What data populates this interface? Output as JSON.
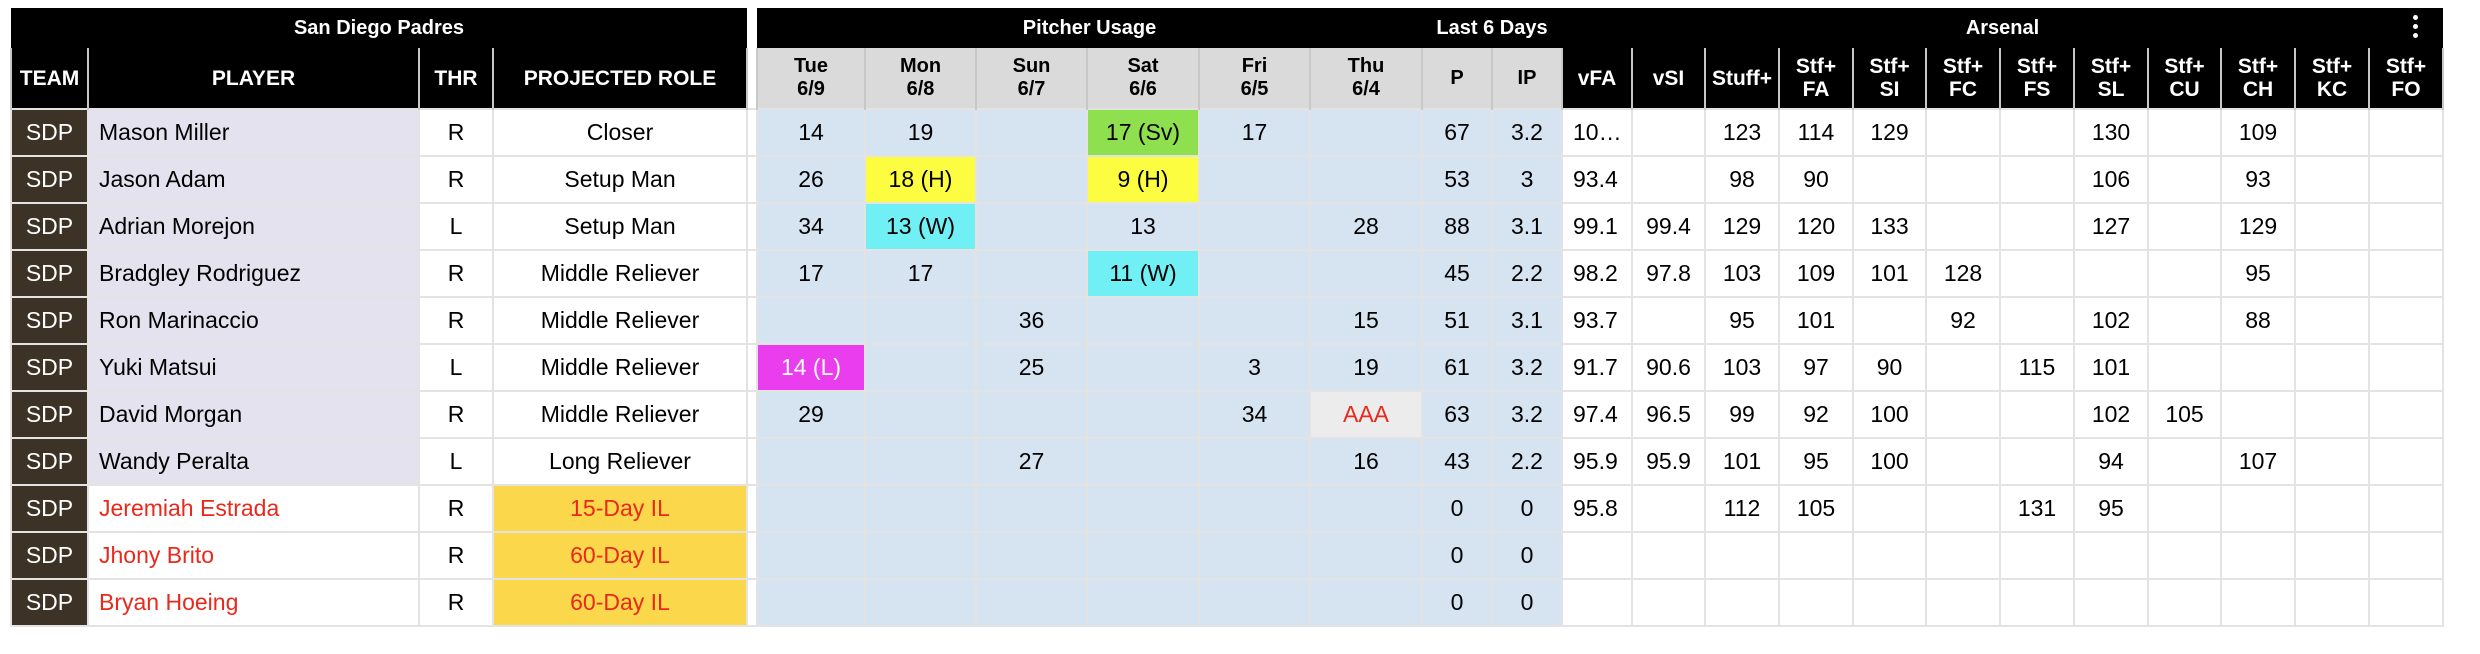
{
  "groups": {
    "team": "San Diego Padres",
    "usage": "Pitcher Usage",
    "last6": "Last 6 Days",
    "arsenal": "Arsenal"
  },
  "headers": {
    "team": "TEAM",
    "player": "PLAYER",
    "thr": "THR",
    "role": "PROJECTED ROLE",
    "days": [
      {
        "day": "Tue",
        "date": "6/9"
      },
      {
        "day": "Mon",
        "date": "6/8"
      },
      {
        "day": "Sun",
        "date": "6/7"
      },
      {
        "day": "Sat",
        "date": "6/6"
      },
      {
        "day": "Fri",
        "date": "6/5"
      },
      {
        "day": "Thu",
        "date": "6/4"
      }
    ],
    "last6": [
      "P",
      "IP"
    ],
    "arsenal": [
      [
        "vFA"
      ],
      [
        "vSI"
      ],
      [
        "Stuff+"
      ],
      [
        "Stf+",
        "FA"
      ],
      [
        "Stf+",
        "SI"
      ],
      [
        "Stf+",
        "FC"
      ],
      [
        "Stf+",
        "FS"
      ],
      [
        "Stf+",
        "SL"
      ],
      [
        "Stf+",
        "CU"
      ],
      [
        "Stf+",
        "CH"
      ],
      [
        "Stf+",
        "KC"
      ],
      [
        "Stf+",
        "FO"
      ]
    ]
  },
  "legend_colors": {
    "save": "#8ee04e",
    "hold": "#fcfc41",
    "win": "#70f0f4",
    "loss": "#ea3ded",
    "injured_list": "#fbd84b",
    "team_badge": "#3c3226"
  },
  "rows": [
    {
      "team": "SDP",
      "player": "Mason Miller",
      "thr": "R",
      "role": "Closer",
      "injured": false,
      "usage": [
        {
          "text": "14",
          "event": ""
        },
        {
          "text": "19",
          "event": ""
        },
        {
          "text": "",
          "event": ""
        },
        {
          "text": "17 (Sv)",
          "event": "sv"
        },
        {
          "text": "17",
          "event": ""
        },
        {
          "text": "",
          "event": ""
        }
      ],
      "p": "67",
      "ip": "3.2",
      "arsenal": [
        "10…",
        "",
        "123",
        "114",
        "129",
        "",
        "",
        "130",
        "",
        "109",
        "",
        ""
      ]
    },
    {
      "team": "SDP",
      "player": "Jason Adam",
      "thr": "R",
      "role": "Setup Man",
      "injured": false,
      "usage": [
        {
          "text": "26",
          "event": ""
        },
        {
          "text": "18 (H)",
          "event": "h"
        },
        {
          "text": "",
          "event": ""
        },
        {
          "text": "9 (H)",
          "event": "h"
        },
        {
          "text": "",
          "event": ""
        },
        {
          "text": "",
          "event": ""
        }
      ],
      "p": "53",
      "ip": "3",
      "arsenal": [
        "93.4",
        "",
        "98",
        "90",
        "",
        "",
        "",
        "106",
        "",
        "93",
        "",
        ""
      ]
    },
    {
      "team": "SDP",
      "player": "Adrian Morejon",
      "thr": "L",
      "role": "Setup Man",
      "injured": false,
      "usage": [
        {
          "text": "34",
          "event": ""
        },
        {
          "text": "13 (W)",
          "event": "w"
        },
        {
          "text": "",
          "event": ""
        },
        {
          "text": "13",
          "event": ""
        },
        {
          "text": "",
          "event": ""
        },
        {
          "text": "28",
          "event": ""
        }
      ],
      "p": "88",
      "ip": "3.1",
      "arsenal": [
        "99.1",
        "99.4",
        "129",
        "120",
        "133",
        "",
        "",
        "127",
        "",
        "129",
        "",
        ""
      ]
    },
    {
      "team": "SDP",
      "player": "Bradgley Rodriguez",
      "thr": "R",
      "role": "Middle Reliever",
      "injured": false,
      "usage": [
        {
          "text": "17",
          "event": ""
        },
        {
          "text": "17",
          "event": ""
        },
        {
          "text": "",
          "event": ""
        },
        {
          "text": "11 (W)",
          "event": "w"
        },
        {
          "text": "",
          "event": ""
        },
        {
          "text": "",
          "event": ""
        }
      ],
      "p": "45",
      "ip": "2.2",
      "arsenal": [
        "98.2",
        "97.8",
        "103",
        "109",
        "101",
        "128",
        "",
        "",
        "",
        "95",
        "",
        ""
      ]
    },
    {
      "team": "SDP",
      "player": "Ron Marinaccio",
      "thr": "R",
      "role": "Middle Reliever",
      "injured": false,
      "usage": [
        {
          "text": "",
          "event": ""
        },
        {
          "text": "",
          "event": ""
        },
        {
          "text": "36",
          "event": ""
        },
        {
          "text": "",
          "event": ""
        },
        {
          "text": "",
          "event": ""
        },
        {
          "text": "15",
          "event": ""
        }
      ],
      "p": "51",
      "ip": "3.1",
      "arsenal": [
        "93.7",
        "",
        "95",
        "101",
        "",
        "92",
        "",
        "102",
        "",
        "88",
        "",
        ""
      ]
    },
    {
      "team": "SDP",
      "player": "Yuki Matsui",
      "thr": "L",
      "role": "Middle Reliever",
      "injured": false,
      "usage": [
        {
          "text": "14 (L)",
          "event": "l"
        },
        {
          "text": "",
          "event": ""
        },
        {
          "text": "25",
          "event": ""
        },
        {
          "text": "",
          "event": ""
        },
        {
          "text": "3",
          "event": ""
        },
        {
          "text": "19",
          "event": ""
        }
      ],
      "p": "61",
      "ip": "3.2",
      "arsenal": [
        "91.7",
        "90.6",
        "103",
        "97",
        "90",
        "",
        "115",
        "101",
        "",
        "",
        "",
        ""
      ]
    },
    {
      "team": "SDP",
      "player": "David Morgan",
      "thr": "R",
      "role": "Middle Reliever",
      "injured": false,
      "usage": [
        {
          "text": "29",
          "event": ""
        },
        {
          "text": "",
          "event": ""
        },
        {
          "text": "",
          "event": ""
        },
        {
          "text": "",
          "event": ""
        },
        {
          "text": "34",
          "event": ""
        },
        {
          "text": "AAA",
          "event": "aaa"
        }
      ],
      "p": "63",
      "ip": "3.2",
      "arsenal": [
        "97.4",
        "96.5",
        "99",
        "92",
        "100",
        "",
        "",
        "102",
        "105",
        "",
        "",
        ""
      ]
    },
    {
      "team": "SDP",
      "player": "Wandy Peralta",
      "thr": "L",
      "role": "Long Reliever",
      "injured": false,
      "usage": [
        {
          "text": "",
          "event": ""
        },
        {
          "text": "",
          "event": ""
        },
        {
          "text": "27",
          "event": ""
        },
        {
          "text": "",
          "event": ""
        },
        {
          "text": "",
          "event": ""
        },
        {
          "text": "16",
          "event": ""
        }
      ],
      "p": "43",
      "ip": "2.2",
      "arsenal": [
        "95.9",
        "95.9",
        "101",
        "95",
        "100",
        "",
        "",
        "94",
        "",
        "107",
        "",
        ""
      ]
    },
    {
      "team": "SDP",
      "player": "Jeremiah Estrada",
      "thr": "R",
      "role": "15-Day IL",
      "injured": true,
      "usage": [
        {
          "text": "",
          "event": ""
        },
        {
          "text": "",
          "event": ""
        },
        {
          "text": "",
          "event": ""
        },
        {
          "text": "",
          "event": ""
        },
        {
          "text": "",
          "event": ""
        },
        {
          "text": "",
          "event": ""
        }
      ],
      "p": "0",
      "ip": "0",
      "arsenal": [
        "95.8",
        "",
        "112",
        "105",
        "",
        "",
        "131",
        "95",
        "",
        "",
        "",
        ""
      ]
    },
    {
      "team": "SDP",
      "player": "Jhony Brito",
      "thr": "R",
      "role": "60-Day IL",
      "injured": true,
      "usage": [
        {
          "text": "",
          "event": ""
        },
        {
          "text": "",
          "event": ""
        },
        {
          "text": "",
          "event": ""
        },
        {
          "text": "",
          "event": ""
        },
        {
          "text": "",
          "event": ""
        },
        {
          "text": "",
          "event": ""
        }
      ],
      "p": "0",
      "ip": "0",
      "arsenal": [
        "",
        "",
        "",
        "",
        "",
        "",
        "",
        "",
        "",
        "",
        "",
        ""
      ]
    },
    {
      "team": "SDP",
      "player": "Bryan Hoeing",
      "thr": "R",
      "role": "60-Day IL",
      "injured": true,
      "usage": [
        {
          "text": "",
          "event": ""
        },
        {
          "text": "",
          "event": ""
        },
        {
          "text": "",
          "event": ""
        },
        {
          "text": "",
          "event": ""
        },
        {
          "text": "",
          "event": ""
        },
        {
          "text": "",
          "event": ""
        }
      ],
      "p": "0",
      "ip": "0",
      "arsenal": [
        "",
        "",
        "",
        "",
        "",
        "",
        "",
        "",
        "",
        "",
        "",
        ""
      ]
    }
  ]
}
